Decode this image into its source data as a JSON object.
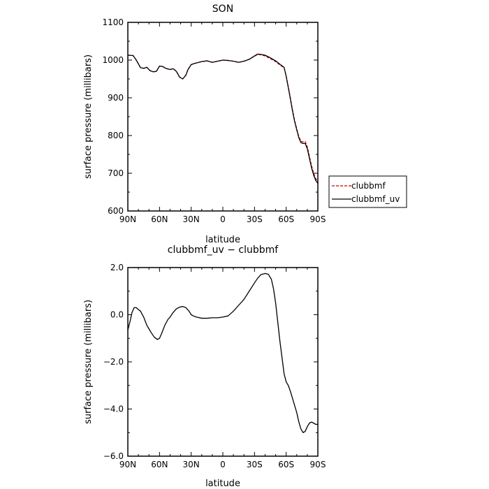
{
  "chart_data": [
    {
      "type": "line",
      "title": "SON",
      "xlabel": "latitude",
      "ylabel": "surface pressure (millibars)",
      "xlim": [
        90,
        -90
      ],
      "ylim": [
        600,
        1100
      ],
      "x_tick_values": [
        90,
        60,
        30,
        0,
        -30,
        -60,
        -90
      ],
      "x_tick_labels": [
        "90N",
        "60N",
        "30N",
        "0",
        "30S",
        "60S",
        "90S"
      ],
      "y_tick_values": [
        600,
        700,
        800,
        900,
        1000,
        1100
      ],
      "y_tick_labels": [
        "600",
        "700",
        "800",
        "900",
        "1000",
        "1100"
      ],
      "legend_position": "outside-right",
      "x": [
        90,
        85,
        82,
        78,
        75,
        72,
        69,
        66,
        63,
        60,
        57,
        54,
        50,
        47,
        44,
        41,
        38,
        35,
        33,
        30,
        27,
        24,
        20,
        15,
        10,
        5,
        0,
        -5,
        -10,
        -15,
        -20,
        -25,
        -30,
        -33,
        -36,
        -40,
        -45,
        -50,
        -55,
        -58,
        -60,
        -63,
        -66,
        -68,
        -70,
        -72,
        -74,
        -76,
        -78,
        -80,
        -82,
        -84,
        -86,
        -88,
        -90
      ],
      "series": [
        {
          "name": "clubbmf",
          "color": "#cc0000",
          "dash": "dashed",
          "values": [
            1013,
            1012,
            1000,
            980,
            978,
            981,
            972,
            969,
            970,
            984,
            983,
            978,
            975,
            977,
            970,
            955,
            950,
            960,
            975,
            988,
            991,
            993,
            996,
            998,
            994,
            997,
            1000,
            999,
            997,
            994,
            997,
            1002,
            1010,
            1015,
            1014,
            1011,
            1004,
            996,
            985,
            980,
            958,
            915,
            868,
            840,
            818,
            797,
            785,
            783,
            784,
            770,
            745,
            720,
            700,
            686,
            678
          ]
        },
        {
          "name": "clubbmf_uv",
          "color": "#000000",
          "dash": "solid",
          "values": [
            1013,
            1012,
            1000,
            980,
            978,
            981,
            972,
            969,
            970,
            984,
            983,
            978,
            975,
            977,
            970,
            955,
            950,
            960,
            975,
            988,
            991,
            993,
            996,
            998,
            994,
            997,
            1000,
            999,
            997,
            994,
            997,
            1002,
            1011,
            1016,
            1015,
            1013,
            1006,
            998,
            987,
            981,
            957,
            912,
            865,
            837,
            815,
            794,
            781,
            779,
            779,
            765,
            740,
            715,
            695,
            681,
            673
          ]
        }
      ]
    },
    {
      "type": "line",
      "title": "clubbmf_uv − clubbmf",
      "xlabel": "latitude",
      "ylabel": "surface pressure (millibars)",
      "xlim": [
        90,
        -90
      ],
      "ylim": [
        -6.0,
        2.0
      ],
      "x_tick_values": [
        90,
        60,
        30,
        0,
        -30,
        -60,
        -90
      ],
      "x_tick_labels": [
        "90N",
        "60N",
        "30N",
        "0",
        "30S",
        "60S",
        "90S"
      ],
      "y_tick_values": [
        -6,
        -4,
        -2,
        0,
        2
      ],
      "y_tick_labels": [
        "−6.0",
        "−4.0",
        "−2.0",
        "0.0",
        "2.0"
      ],
      "x": [
        90,
        88,
        86,
        84,
        82,
        80,
        78,
        75,
        72,
        70,
        68,
        65,
        62,
        60,
        58,
        55,
        52,
        50,
        47,
        44,
        41,
        38,
        35,
        32,
        30,
        28,
        25,
        20,
        15,
        10,
        5,
        0,
        -5,
        -10,
        -15,
        -20,
        -25,
        -30,
        -33,
        -36,
        -40,
        -43,
        -46,
        -48,
        -50,
        -52,
        -54,
        -56,
        -58,
        -60,
        -62,
        -64,
        -66,
        -68,
        -70,
        -72,
        -74,
        -76,
        -78,
        -80,
        -82,
        -84,
        -86,
        -88,
        -90
      ],
      "series": [
        {
          "name": "",
          "color": "#000000",
          "dash": "solid",
          "values": [
            -0.65,
            -0.3,
            0.1,
            0.3,
            0.3,
            0.22,
            0.15,
            -0.1,
            -0.45,
            -0.6,
            -0.75,
            -0.95,
            -1.05,
            -1.0,
            -0.8,
            -0.45,
            -0.2,
            -0.1,
            0.1,
            0.25,
            0.32,
            0.35,
            0.3,
            0.15,
            0.0,
            -0.05,
            -0.1,
            -0.15,
            -0.15,
            -0.13,
            -0.13,
            -0.1,
            -0.05,
            0.15,
            0.4,
            0.65,
            1.0,
            1.35,
            1.55,
            1.7,
            1.75,
            1.72,
            1.5,
            1.1,
            0.5,
            -0.3,
            -1.1,
            -1.8,
            -2.5,
            -2.85,
            -3.0,
            -3.25,
            -3.55,
            -3.85,
            -4.15,
            -4.55,
            -4.85,
            -5.0,
            -4.95,
            -4.75,
            -4.6,
            -4.55,
            -4.6,
            -4.65,
            -4.65
          ]
        }
      ]
    }
  ]
}
